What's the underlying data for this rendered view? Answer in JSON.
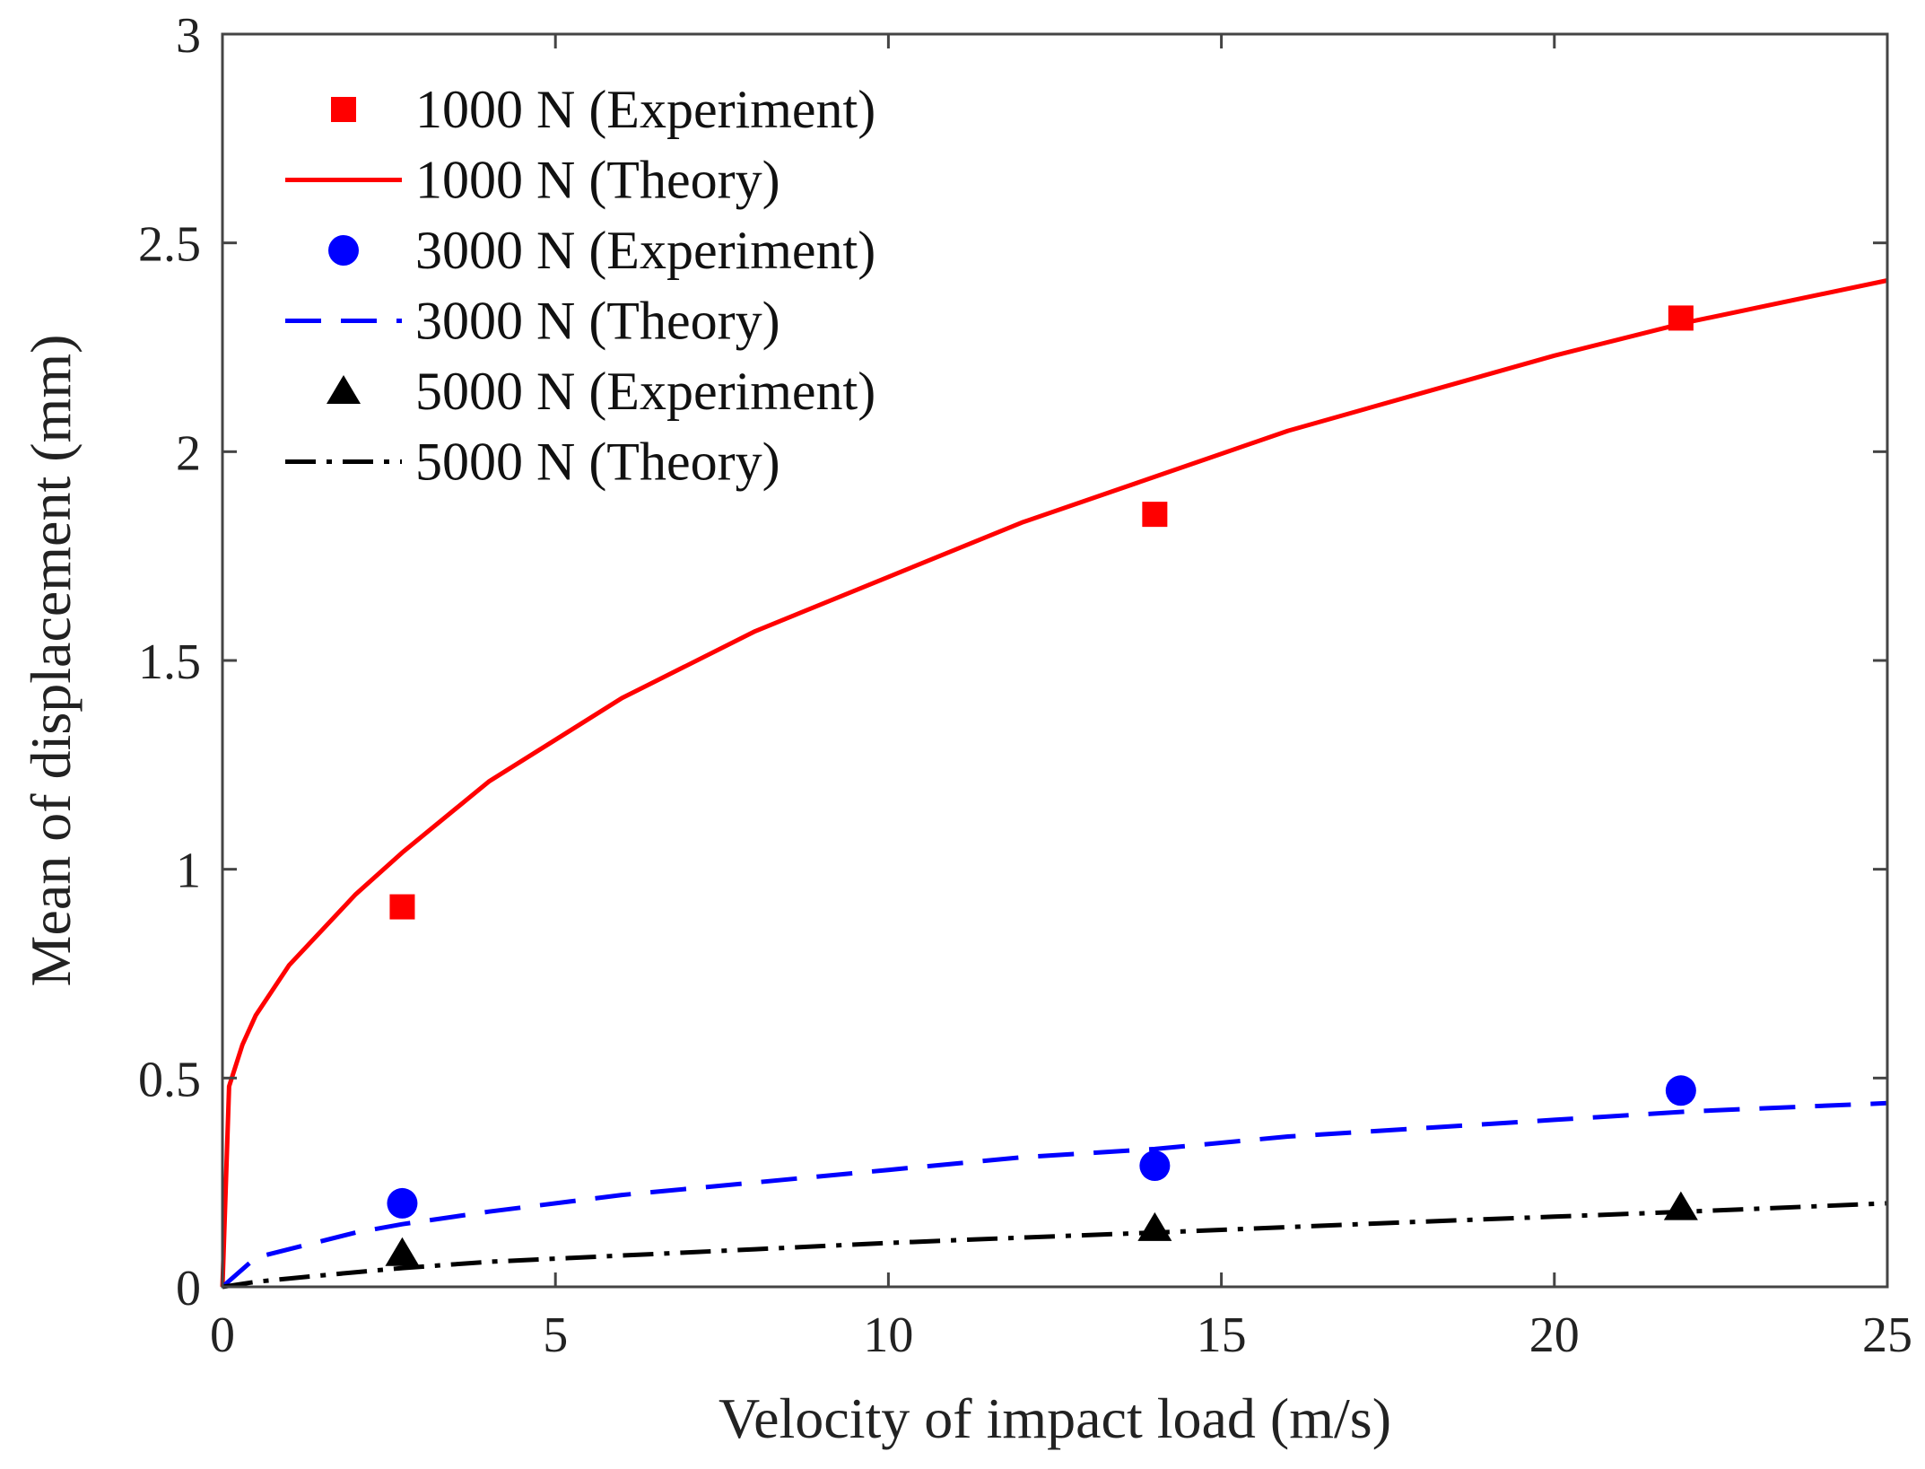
{
  "chart_data": {
    "type": "line",
    "title": "",
    "xlabel": "Velocity of impact load (m/s)",
    "ylabel": "Mean of displacement (mm)",
    "xlim": [
      0,
      25
    ],
    "ylim": [
      0,
      3
    ],
    "xticks": [
      "0",
      "5",
      "10",
      "15",
      "20",
      "25"
    ],
    "yticks": [
      "0",
      "0.5",
      "1",
      "1.5",
      "2",
      "2.5",
      "3"
    ],
    "grid": false,
    "legend_position": "top-left",
    "series": [
      {
        "name": "1000 N (Experiment)",
        "kind": "scatter",
        "marker": "square",
        "color": "#ff0000",
        "x": [
          2.7,
          14,
          21.9
        ],
        "y": [
          0.91,
          1.85,
          2.32
        ]
      },
      {
        "name": "1000 N (Theory)",
        "kind": "line",
        "dash": "solid",
        "color": "#ff0000",
        "x": [
          0,
          0.1,
          0.3,
          0.5,
          1,
          2,
          2.7,
          4,
          6,
          8,
          10,
          12,
          14,
          16,
          18,
          20,
          22,
          25
        ],
        "y": [
          0,
          0.48,
          0.58,
          0.65,
          0.77,
          0.94,
          1.04,
          1.21,
          1.41,
          1.57,
          1.7,
          1.83,
          1.94,
          2.05,
          2.14,
          2.23,
          2.31,
          2.41
        ]
      },
      {
        "name": "3000 N (Experiment)",
        "kind": "scatter",
        "marker": "circle",
        "color": "#0000ff",
        "x": [
          2.7,
          14,
          21.9
        ],
        "y": [
          0.2,
          0.29,
          0.47
        ]
      },
      {
        "name": "3000 N (Theory)",
        "kind": "line",
        "dash": "dashed",
        "color": "#0000ff",
        "x": [
          0,
          0.5,
          1,
          2,
          2.7,
          4,
          6,
          8,
          10,
          12,
          14,
          16,
          18,
          20,
          22,
          25
        ],
        "y": [
          0,
          0.07,
          0.09,
          0.13,
          0.15,
          0.18,
          0.22,
          0.25,
          0.28,
          0.31,
          0.33,
          0.36,
          0.38,
          0.4,
          0.42,
          0.44
        ]
      },
      {
        "name": "5000 N (Experiment)",
        "kind": "scatter",
        "marker": "triangle",
        "color": "#000000",
        "x": [
          2.7,
          14,
          21.9
        ],
        "y": [
          0.08,
          0.14,
          0.19
        ]
      },
      {
        "name": "5000 N (Theory)",
        "kind": "line",
        "dash": "dashdot",
        "color": "#000000",
        "x": [
          0,
          0.5,
          1,
          2,
          2.7,
          4,
          6,
          8,
          10,
          12,
          14,
          16,
          18,
          20,
          22,
          25
        ],
        "y": [
          0,
          0.012,
          0.02,
          0.035,
          0.045,
          0.06,
          0.075,
          0.09,
          0.105,
          0.118,
          0.13,
          0.143,
          0.156,
          0.168,
          0.18,
          0.2
        ]
      }
    ]
  }
}
